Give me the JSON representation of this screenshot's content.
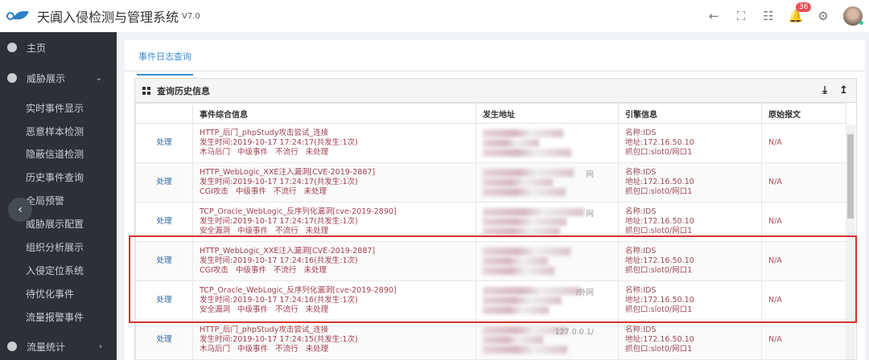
{
  "header": {
    "title": "天阗入侵检测与管理系统",
    "version": "V7.0",
    "notification_count": "36",
    "icons": [
      "back-arrow-icon",
      "fullscreen-icon",
      "apps-grid-icon",
      "bell-icon",
      "gear-icon",
      "avatar"
    ]
  },
  "sidebar": {
    "items": [
      {
        "label": "主页",
        "icon": "home-icon"
      },
      {
        "label": "威胁展示",
        "icon": "dashboard-icon",
        "expanded": true
      },
      {
        "label": "流量统计",
        "icon": "chart-icon"
      }
    ],
    "subitems": [
      "实时事件显示",
      "恶意样本检测",
      "隐蔽信道检测",
      "历史事件查询",
      "全局预警",
      "威胁展示配置",
      "组织分析展示",
      "入侵定位系统",
      "待优化事件",
      "流量报警事件"
    ]
  },
  "tabs": [
    {
      "label": "事件日志查询",
      "active": true
    }
  ],
  "panel": {
    "title": "查询历史信息",
    "actions": [
      "download-icon",
      "upload-icon"
    ]
  },
  "table": {
    "columns": [
      "",
      "事件综合信息",
      "发生地址",
      "引擎信息",
      "原始报文"
    ],
    "rows": [
      {
        "action": "处理",
        "name": "HTTP_后门_phpStudy攻击尝试_连接",
        "time": "发生时间:2019-10-17 17:24:17(共发生:1次)",
        "tags": "木马后门   中级事件   不流行   未处理",
        "addr_fragment": "",
        "engine": [
          "名称:IDS",
          "地址:172.16.50.10",
          "抓包口:slot0/网口1"
        ],
        "raw": "N/A"
      },
      {
        "action": "处理",
        "name": "HTTP_WebLogic_XXE注入漏洞[CVE-2019-2887]",
        "time": "发生时间:2019-10-17 17:24:17(共发生:1次)",
        "tags": "CGI攻击   中级事件   不流行   未处理",
        "addr_fragment": "网",
        "engine": [
          "名称:IDS",
          "地址:172.16.50.10",
          "抓包口:slot0/网口1"
        ],
        "raw": "N/A"
      },
      {
        "action": "处理",
        "name": "TCP_Oracle_WebLogic_反序列化漏洞[cve-2019-2890]",
        "time": "发生时间:2019-10-17 17:24:17(共发生:1次)",
        "tags": "安全漏洞   中级事件   不流行   未处理",
        "addr_fragment": "网",
        "engine": [
          "名称:IDS",
          "地址:172.16.50.10",
          "抓包口:slot0/网口1"
        ],
        "raw": "N/A"
      },
      {
        "action": "处理",
        "name": "HTTP_WebLogic_XXE注入漏洞[CVE-2019-2887]",
        "time": "发生时间:2019-10-17 17:24:16(共发生:1次)",
        "tags": "CGI攻击   中级事件   不流行   未处理",
        "addr_fragment": "",
        "engine": [
          "名称:IDS",
          "地址:172.16.50.10",
          "抓包口:slot0/网口1"
        ],
        "raw": "N/A"
      },
      {
        "action": "处理",
        "name": "TCP_Oracle_WebLogic_反序列化漏洞[cve-2019-2890]",
        "time": "发生时间:2019-10-17 17:24:16(共发生:1次)",
        "tags": "安全漏洞   中级事件   不流行   未处理",
        "addr_fragment": "/外网",
        "engine": [
          "名称:IDS",
          "地址:172.16.50.10",
          "抓包口:slot0/网口1"
        ],
        "raw": "N/A"
      },
      {
        "action": "处理",
        "name": "HTTP_后门_phpStudy攻击尝试_连接",
        "time": "发生时间:2019-10-17 17:24:15(共发生:1次)",
        "tags": "木马后门   中级事件   不流行   未处理",
        "addr_fragment": "127.0.0.1/",
        "engine": [
          "名称:IDS",
          "地址:172.16.50.10",
          "抓包口:slot0/网口1"
        ],
        "raw": "N/A"
      }
    ]
  },
  "colors": {
    "sidebar_bg": "#2b3137",
    "accent": "#3a8ed4",
    "event_text": "#a2404f",
    "highlight_box": "#d9302f",
    "badge": "#e8505b"
  }
}
